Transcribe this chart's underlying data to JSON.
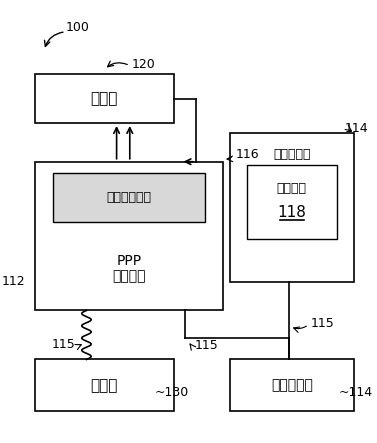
{
  "bg_color": "#ffffff",
  "label_100": "100",
  "label_120": "120",
  "label_116": "116",
  "label_114_top": "114",
  "label_114_bot": "114",
  "label_112": "112",
  "label_115_left": "115",
  "label_115_mid": "115",
  "label_115_right": "115",
  "label_130": "130",
  "text_db": "数据库",
  "text_db_server": "数据库服务器",
  "text_ppp": "PPP",
  "text_calc": "计算装置",
  "text_client_sys_top": "客户端系统",
  "text_ui": "用户界面",
  "text_118": "118",
  "text_datasource": "数据源",
  "text_client_sys_bot": "客户端系统"
}
